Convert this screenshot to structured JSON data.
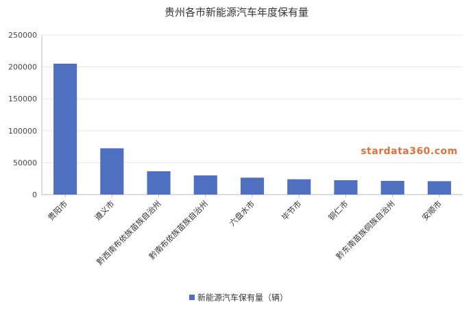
{
  "chart_data": {
    "type": "bar",
    "title": "贵州各市新能源汽车年度保有量",
    "categories": [
      "贵阳市",
      "遵义市",
      "黔西南布依族苗族自治州",
      "黔南布依族苗族自治州",
      "六盘水市",
      "毕节市",
      "铜仁市",
      "黔东南苗族侗族自治州",
      "安顺市"
    ],
    "series": [
      {
        "name": "新能源汽车保有量（辆）",
        "values": [
          205000,
          72500,
          36500,
          30000,
          26500,
          24000,
          22500,
          21500,
          21000
        ]
      }
    ],
    "yticks": [
      "0",
      "50000",
      "100000",
      "150000",
      "200000",
      "250000"
    ],
    "ylim": [
      0,
      250000
    ],
    "grid": true,
    "legend": "bottom-center",
    "bar_color": "#4f6fc0",
    "watermark": "stardata360.com"
  }
}
